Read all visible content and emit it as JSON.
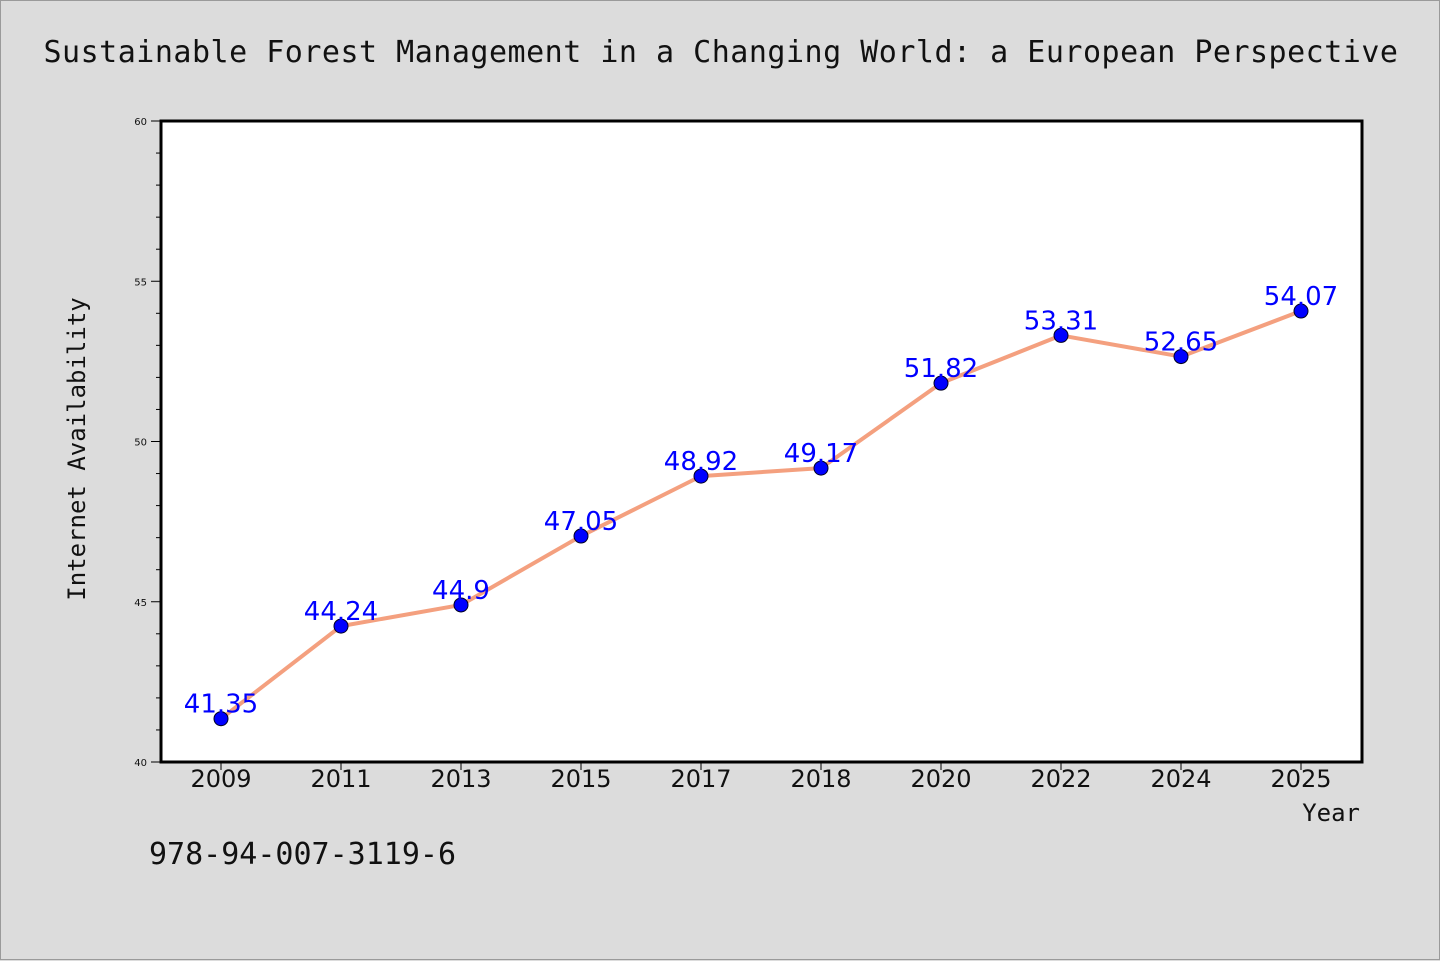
{
  "chart_data": {
    "type": "line",
    "title": "Sustainable Forest Management in a Changing World: a European Perspective",
    "xlabel": "Year",
    "ylabel": "Internet Availability",
    "categories": [
      "2009",
      "2011",
      "2013",
      "2015",
      "2017",
      "2018",
      "2020",
      "2022",
      "2024",
      "2025"
    ],
    "values": [
      41.35,
      44.24,
      44.9,
      47.05,
      48.92,
      49.17,
      51.82,
      53.31,
      52.65,
      54.07
    ],
    "value_labels": [
      "41.35",
      "44.24",
      "44.9",
      "47.05",
      "48.92",
      "49.17",
      "51.82",
      "53.31",
      "52.65",
      "54.07"
    ],
    "ylim": [
      40,
      60
    ],
    "yticks": [
      40,
      45,
      50,
      55,
      60
    ],
    "grid": false,
    "colors": {
      "line": "#f4a07f",
      "marker": "#0000ff",
      "label": "#0000ff",
      "background": "#dcdcdc",
      "plot_background": "#ffffff"
    }
  },
  "footer": {
    "isbn": "978-94-007-3119-6"
  }
}
